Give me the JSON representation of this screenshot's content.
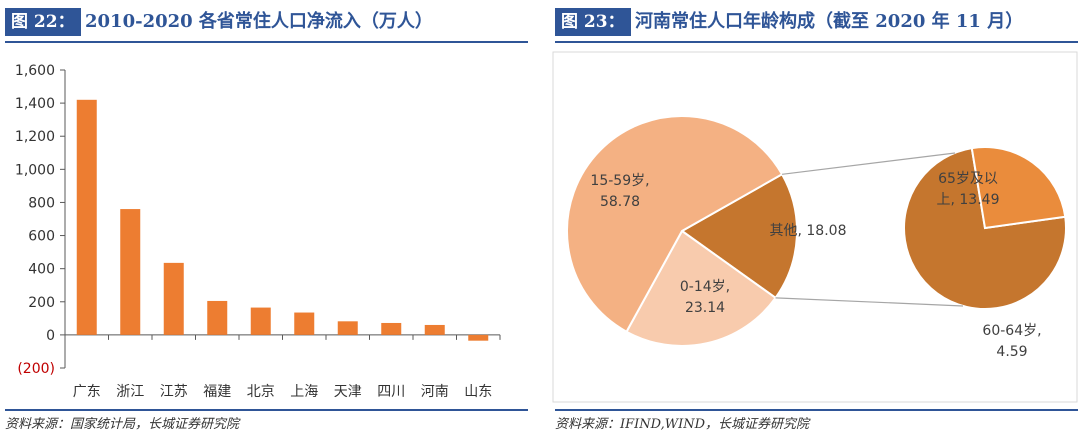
{
  "left": {
    "tag": "图 22：",
    "title": "2010-2020 各省常住人口净流入（万人）",
    "source": "资料来源：国家统计局，长城证券研究院"
  },
  "right": {
    "tag": "图 23：",
    "title": "河南常住人口年龄构成（截至 2020 年 11 月）",
    "source": "资料来源：IFIND,WIND，长城证券研究院"
  },
  "colors": {
    "accent": "#2f5597",
    "bar": "#ed7d31",
    "slice_15_59": "#f4b183",
    "slice_0_14": "#f8cbad",
    "slice_other": "#c5762e",
    "slice_65": "#c5762e",
    "slice_60_64": "#ea8c3c"
  },
  "chart_data": [
    {
      "type": "bar",
      "categories": [
        "广东",
        "浙江",
        "江苏",
        "福建",
        "北京",
        "上海",
        "天津",
        "四川",
        "河南",
        "山东"
      ],
      "values": [
        1420,
        760,
        435,
        205,
        165,
        135,
        82,
        72,
        60,
        -35
      ],
      "y_tick_labels": [
        "1,600",
        "1,400",
        "1,200",
        "1,000",
        "800",
        "600",
        "400",
        "200",
        "0",
        "(200)"
      ],
      "ylim": [
        -200,
        1600
      ],
      "title": "",
      "xlabel": "",
      "ylabel": "",
      "grid": false
    },
    {
      "type": "pie",
      "main": {
        "slices": [
          {
            "label": "15-59岁,",
            "value_text": "58.78",
            "value": 58.78
          },
          {
            "label": "0-14岁,",
            "value_text": "23.14",
            "value": 23.14
          },
          {
            "label": "其他,",
            "value_text": "18.08",
            "value": 18.08
          }
        ]
      },
      "breakout": {
        "slices": [
          {
            "label": "65岁及以",
            "label2": "上, 13.49",
            "value": 13.49
          },
          {
            "label": "60-64岁,",
            "value_text": "4.59",
            "value": 4.59
          }
        ]
      }
    }
  ]
}
